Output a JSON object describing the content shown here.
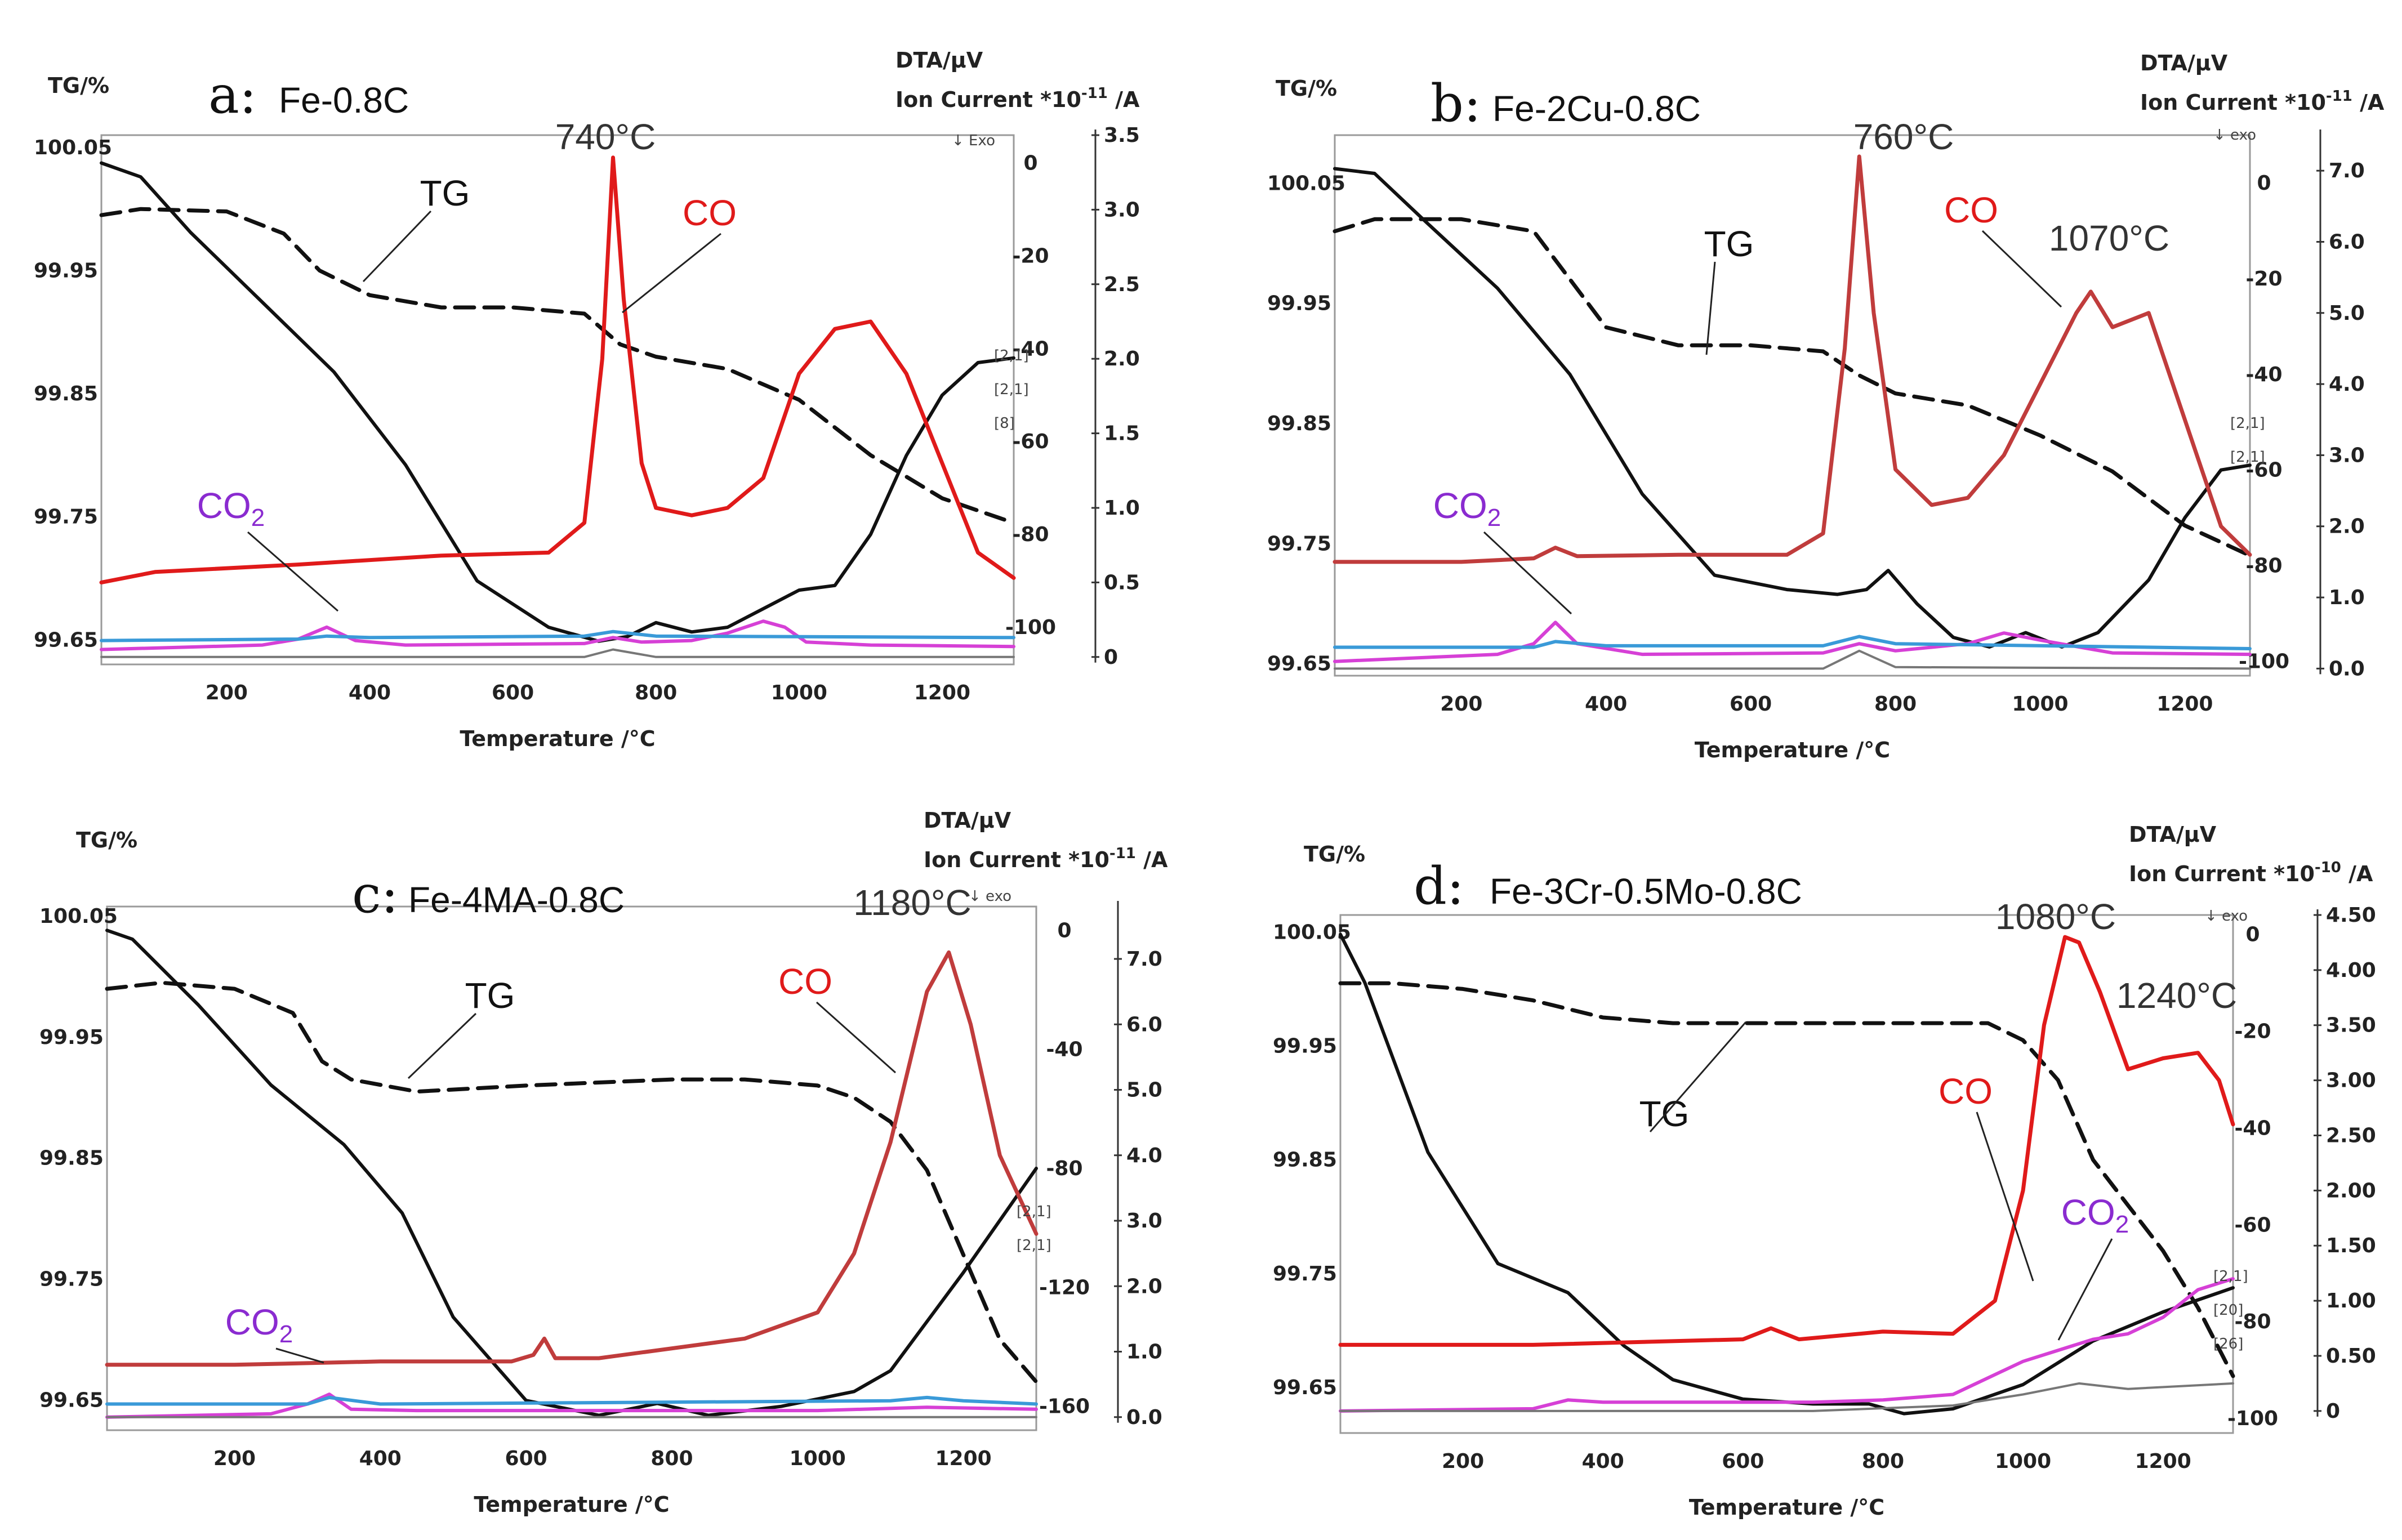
{
  "colors": {
    "co_bright": "#e01a1a",
    "co_dark": "#c03c3c",
    "co2": "#d640d6",
    "co2_label": "#8a2bd0",
    "tg": "#111111",
    "dta": "#111111",
    "blue": "#3a9ad8",
    "gray": "#777777"
  },
  "common": {
    "ylabel_left": "TG/%",
    "ylabel_right_1": "DTA/μV",
    "ion_prefix": "Ion Current *10",
    "ion_suffix": " /A",
    "xlabel": "Temperature /°C",
    "co_label": "CO",
    "co2_label": "CO",
    "co2_sub": "2",
    "tg_label": "TG"
  },
  "chart_data": [
    {
      "panel": "a",
      "type": "line",
      "letter": "a:",
      "title": "Fe-0.8C",
      "ion_exp": "-11",
      "exo_label": "↓ Exo",
      "peak_labels": [
        "740°C"
      ],
      "xlim": [
        25,
        1300
      ],
      "xticks": [
        "200",
        "400",
        "600",
        "800",
        "1000",
        "1200"
      ],
      "tg_ylim": [
        99.63,
        100.06
      ],
      "tg_ticks": [
        "100.05",
        "99.95",
        "99.85",
        "99.75",
        "99.65"
      ],
      "dta_ylim": [
        -108,
        6
      ],
      "dta_ticks": [
        "0",
        "-20",
        "-40",
        "-60",
        "-80",
        "-100"
      ],
      "ion_ylim": [
        -0.05,
        3.5
      ],
      "ion_ticks": [
        "3.5",
        "3.0",
        "2.5",
        "2.0",
        "1.5",
        "1.0",
        "0.5",
        "0"
      ],
      "series": [
        {
          "name": "TG",
          "axis": "tg",
          "style": "dash",
          "x": [
            25,
            80,
            200,
            280,
            330,
            400,
            500,
            600,
            700,
            750,
            800,
            900,
            1000,
            1100,
            1200,
            1300
          ],
          "y": [
            99.995,
            100.0,
            99.998,
            99.98,
            99.95,
            99.93,
            99.92,
            99.92,
            99.915,
            99.89,
            99.88,
            99.87,
            99.845,
            99.8,
            99.765,
            99.745
          ]
        },
        {
          "name": "DTA",
          "axis": "dta",
          "style": "solid",
          "x": [
            25,
            80,
            150,
            250,
            350,
            450,
            550,
            650,
            720,
            760,
            800,
            850,
            900,
            950,
            1000,
            1050,
            1100,
            1150,
            1200,
            1250,
            1300
          ],
          "y": [
            0,
            -3,
            -15,
            -30,
            -45,
            -65,
            -90,
            -100,
            -103,
            -102,
            -99,
            -101,
            -100,
            -96,
            -92,
            -91,
            -80,
            -63,
            -50,
            -43,
            -42
          ]
        },
        {
          "name": "CO",
          "axis": "ion",
          "style": "solid",
          "x": [
            25,
            100,
            300,
            500,
            650,
            700,
            725,
            740,
            755,
            780,
            800,
            850,
            900,
            950,
            1000,
            1050,
            1100,
            1150,
            1200,
            1250,
            1300
          ],
          "y": [
            0.5,
            0.57,
            0.62,
            0.68,
            0.7,
            0.9,
            2.0,
            3.35,
            2.4,
            1.3,
            1.0,
            0.95,
            1.0,
            1.2,
            1.9,
            2.2,
            2.25,
            1.9,
            1.3,
            0.7,
            0.53
          ]
        },
        {
          "name": "CO2",
          "axis": "ion",
          "style": "solid",
          "x": [
            25,
            250,
            300,
            340,
            380,
            450,
            700,
            740,
            780,
            850,
            900,
            950,
            980,
            1010,
            1100,
            1300
          ],
          "y": [
            0.05,
            0.08,
            0.12,
            0.2,
            0.11,
            0.08,
            0.09,
            0.13,
            0.1,
            0.11,
            0.16,
            0.24,
            0.2,
            0.1,
            0.08,
            0.07
          ]
        },
        {
          "name": "blue",
          "axis": "ion",
          "style": "solid",
          "x": [
            25,
            300,
            340,
            400,
            700,
            740,
            800,
            1300
          ],
          "y": [
            0.11,
            0.12,
            0.14,
            0.13,
            0.14,
            0.17,
            0.14,
            0.13
          ]
        },
        {
          "name": "gray",
          "axis": "ion",
          "style": "solid",
          "x": [
            25,
            700,
            740,
            800,
            1300
          ],
          "y": [
            0.0,
            0.0,
            0.05,
            0.0,
            0.0
          ]
        }
      ],
      "bracket_labels": [
        "[2,1]",
        "[2,1]",
        "[8]"
      ]
    },
    {
      "panel": "b",
      "type": "line",
      "letter": "b:",
      "title": "Fe-2Cu-0.8C",
      "ion_exp": "-11",
      "exo_label": "↓ exo",
      "peak_labels": [
        "760°C",
        "1070°C"
      ],
      "xlim": [
        25,
        1290
      ],
      "xticks": [
        "200",
        "400",
        "600",
        "800",
        "1000",
        "1200"
      ],
      "tg_ylim": [
        99.64,
        100.09
      ],
      "tg_ticks": [
        "100.05",
        "99.95",
        "99.85",
        "99.75",
        "99.65"
      ],
      "dta_ylim": [
        -103,
        10
      ],
      "dta_ticks": [
        "0",
        "-20",
        "-40",
        "-60",
        "-80",
        "-100"
      ],
      "ion_ylim": [
        -0.1,
        7.5
      ],
      "ion_ticks": [
        "7.0",
        "6.0",
        "5.0",
        "4.0",
        "3.0",
        "2.0",
        "1.0",
        "0.0"
      ],
      "series": [
        {
          "name": "TG",
          "axis": "tg",
          "style": "dash",
          "x": [
            25,
            80,
            200,
            300,
            350,
            400,
            500,
            600,
            700,
            750,
            800,
            900,
            1000,
            1100,
            1200,
            1290
          ],
          "y": [
            100.01,
            100.02,
            100.02,
            100.01,
            99.97,
            99.93,
            99.915,
            99.915,
            99.91,
            99.89,
            99.875,
            99.865,
            99.84,
            99.81,
            99.765,
            99.74
          ]
        },
        {
          "name": "DTA",
          "axis": "dta",
          "style": "solid",
          "x": [
            25,
            80,
            150,
            250,
            350,
            450,
            550,
            650,
            720,
            760,
            790,
            830,
            880,
            930,
            980,
            1030,
            1080,
            1150,
            1200,
            1250,
            1290
          ],
          "y": [
            3,
            2,
            -8,
            -22,
            -40,
            -65,
            -82,
            -85,
            -86,
            -85,
            -81,
            -88,
            -95,
            -97,
            -94,
            -97,
            -94,
            -83,
            -70,
            -60,
            -59
          ]
        },
        {
          "name": "CO",
          "axis": "ion",
          "style": "solid",
          "x": [
            25,
            200,
            300,
            330,
            360,
            500,
            650,
            700,
            730,
            750,
            770,
            800,
            850,
            900,
            950,
            1000,
            1050,
            1070,
            1100,
            1150,
            1200,
            1250,
            1290
          ],
          "y": [
            1.5,
            1.5,
            1.55,
            1.7,
            1.58,
            1.6,
            1.6,
            1.9,
            4.5,
            7.2,
            5.0,
            2.8,
            2.3,
            2.4,
            3.0,
            4.0,
            5.0,
            5.3,
            4.8,
            5.0,
            3.5,
            2.0,
            1.6
          ]
        },
        {
          "name": "CO2",
          "axis": "ion",
          "style": "solid",
          "x": [
            25,
            250,
            300,
            330,
            360,
            450,
            700,
            750,
            800,
            900,
            950,
            1000,
            1100,
            1290
          ],
          "y": [
            0.1,
            0.2,
            0.35,
            0.65,
            0.35,
            0.2,
            0.22,
            0.35,
            0.25,
            0.35,
            0.5,
            0.4,
            0.22,
            0.2
          ]
        },
        {
          "name": "blue",
          "axis": "ion",
          "style": "solid",
          "x": [
            25,
            300,
            330,
            400,
            700,
            750,
            800,
            1290
          ],
          "y": [
            0.3,
            0.3,
            0.38,
            0.32,
            0.32,
            0.45,
            0.35,
            0.28
          ]
        },
        {
          "name": "gray",
          "axis": "ion",
          "style": "solid",
          "x": [
            25,
            700,
            750,
            800,
            1290
          ],
          "y": [
            0.0,
            0.0,
            0.25,
            0.02,
            0.0
          ]
        }
      ],
      "bracket_labels": [
        "[2,1]",
        "[2,1]"
      ]
    },
    {
      "panel": "c",
      "type": "line",
      "letter": "c:",
      "title": "Fe-4MA-0.8C",
      "ion_exp": "-11",
      "exo_label": "↓ exo",
      "peak_labels": [
        "1180°C"
      ],
      "xlim": [
        25,
        1300
      ],
      "xticks": [
        "200",
        "400",
        "600",
        "800",
        "1000",
        "1200"
      ],
      "tg_ylim": [
        99.625,
        100.058
      ],
      "tg_ticks": [
        "100.05",
        "99.95",
        "99.85",
        "99.75",
        "99.65"
      ],
      "dta_ylim": [
        -168,
        8
      ],
      "dta_ticks": [
        "0",
        "-40",
        "-80",
        "-120",
        "-160"
      ],
      "ion_ylim": [
        -0.2,
        7.8
      ],
      "ion_ticks": [
        "7.0",
        "6.0",
        "5.0",
        "4.0",
        "3.0",
        "2.0",
        "1.0",
        "0.0"
      ],
      "series": [
        {
          "name": "TG",
          "axis": "tg",
          "style": "dash",
          "x": [
            25,
            100,
            200,
            280,
            320,
            360,
            450,
            600,
            800,
            900,
            1000,
            1050,
            1100,
            1150,
            1200,
            1250,
            1300
          ],
          "y": [
            99.99,
            99.995,
            99.99,
            99.97,
            99.93,
            99.915,
            99.905,
            99.91,
            99.915,
            99.915,
            99.91,
            99.9,
            99.88,
            99.84,
            99.77,
            99.7,
            99.665
          ]
        },
        {
          "name": "DTA",
          "axis": "dta",
          "style": "solid",
          "x": [
            25,
            60,
            150,
            250,
            350,
            430,
            500,
            600,
            700,
            780,
            850,
            950,
            1050,
            1100,
            1200,
            1300
          ],
          "y": [
            0,
            -3,
            -25,
            -52,
            -72,
            -95,
            -130,
            -158,
            -163,
            -159,
            -163,
            -160,
            -155,
            -148,
            -115,
            -80
          ]
        },
        {
          "name": "CO",
          "axis": "ion",
          "style": "solid",
          "x": [
            25,
            200,
            400,
            580,
            610,
            625,
            640,
            700,
            900,
            1000,
            1050,
            1100,
            1150,
            1180,
            1210,
            1250,
            1300
          ],
          "y": [
            0.8,
            0.8,
            0.85,
            0.85,
            0.95,
            1.2,
            0.9,
            0.9,
            1.2,
            1.6,
            2.5,
            4.2,
            6.5,
            7.1,
            6.0,
            4.0,
            2.8
          ]
        },
        {
          "name": "CO2",
          "axis": "ion",
          "style": "solid",
          "x": [
            25,
            250,
            300,
            330,
            360,
            450,
            700,
            1000,
            1150,
            1300
          ],
          "y": [
            0.0,
            0.05,
            0.2,
            0.35,
            0.12,
            0.1,
            0.1,
            0.1,
            0.15,
            0.12
          ]
        },
        {
          "name": "blue",
          "axis": "ion",
          "style": "solid",
          "x": [
            25,
            300,
            330,
            400,
            1100,
            1150,
            1200,
            1300
          ],
          "y": [
            0.2,
            0.2,
            0.3,
            0.2,
            0.25,
            0.3,
            0.25,
            0.2
          ]
        },
        {
          "name": "gray",
          "axis": "ion",
          "style": "solid",
          "x": [
            25,
            1300
          ],
          "y": [
            0.0,
            0.0
          ]
        }
      ],
      "bracket_labels": [
        "[2,1]",
        "[2,1]"
      ]
    },
    {
      "panel": "d",
      "type": "line",
      "letter": "d:",
      "title": "Fe-3Cr-0.5Mo-0.8C",
      "ion_exp": "-10",
      "exo_label": "↓ exo",
      "peak_labels": [
        "1080°C",
        "1240°C"
      ],
      "xlim": [
        25,
        1300
      ],
      "xticks": [
        "200",
        "400",
        "600",
        "800",
        "1000",
        "1200"
      ],
      "tg_ylim": [
        99.61,
        100.065
      ],
      "tg_ticks": [
        "100.05",
        "99.95",
        "99.85",
        "99.75",
        "99.65"
      ],
      "dta_ylim": [
        -103,
        4
      ],
      "dta_ticks": [
        "0",
        "-20",
        "-40",
        "-60",
        "-80",
        "-100"
      ],
      "ion_ylim": [
        -0.2,
        4.5
      ],
      "ion_ticks": [
        "4.50",
        "4.00",
        "3.50",
        "3.00",
        "2.50",
        "2.00",
        "1.50",
        "1.00",
        "0.50",
        "0"
      ],
      "series": [
        {
          "name": "TG",
          "axis": "tg",
          "style": "dash",
          "x": [
            25,
            100,
            200,
            300,
            400,
            500,
            600,
            800,
            950,
            1000,
            1050,
            1100,
            1150,
            1200,
            1250,
            1300
          ],
          "y": [
            100.005,
            100.005,
            100.0,
            99.99,
            99.975,
            99.97,
            99.97,
            99.97,
            99.97,
            99.955,
            99.92,
            99.85,
            99.81,
            99.77,
            99.72,
            99.66
          ]
        },
        {
          "name": "DTA",
          "axis": "dta",
          "style": "solid",
          "x": [
            25,
            60,
            150,
            250,
            350,
            430,
            500,
            600,
            700,
            780,
            830,
            900,
            1000,
            1100,
            1200,
            1300
          ],
          "y": [
            0,
            -10,
            -45,
            -68,
            -74,
            -85,
            -92,
            -96,
            -97,
            -97,
            -99,
            -98,
            -93,
            -84,
            -78,
            -73
          ]
        },
        {
          "name": "CO",
          "axis": "ion",
          "style": "solid",
          "x": [
            25,
            300,
            600,
            640,
            680,
            800,
            900,
            960,
            1000,
            1030,
            1060,
            1080,
            1110,
            1150,
            1200,
            1250,
            1280,
            1300
          ],
          "y": [
            0.6,
            0.6,
            0.65,
            0.75,
            0.65,
            0.72,
            0.7,
            1.0,
            2.0,
            3.5,
            4.3,
            4.25,
            3.8,
            3.1,
            3.2,
            3.25,
            3.0,
            2.6
          ]
        },
        {
          "name": "CO2",
          "axis": "ion",
          "style": "solid",
          "x": [
            25,
            300,
            350,
            400,
            700,
            800,
            900,
            1000,
            1100,
            1150,
            1200,
            1250,
            1300
          ],
          "y": [
            0.0,
            0.02,
            0.1,
            0.08,
            0.08,
            0.1,
            0.15,
            0.45,
            0.65,
            0.7,
            0.85,
            1.1,
            1.2
          ]
        },
        {
          "name": "gray",
          "axis": "ion",
          "style": "solid",
          "x": [
            25,
            700,
            900,
            1000,
            1080,
            1150,
            1300
          ],
          "y": [
            0.0,
            0.0,
            0.05,
            0.15,
            0.25,
            0.2,
            0.25
          ]
        }
      ],
      "bracket_labels": [
        "[2,1]",
        "[20]",
        "[26]"
      ]
    }
  ]
}
